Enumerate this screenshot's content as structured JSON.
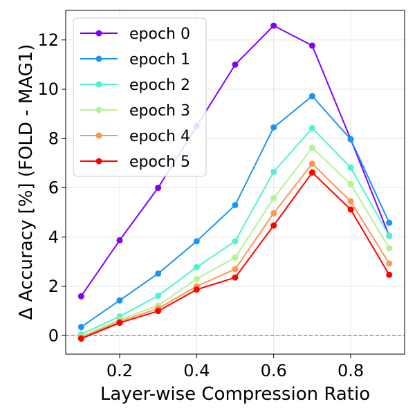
{
  "chart_data": {
    "type": "line",
    "title": "",
    "xlabel": "Layer-wise Compression Ratio",
    "ylabel": "Δ Accuracy [%] (FOLD - MAG1)",
    "x": [
      0.1,
      0.2,
      0.3,
      0.4,
      0.5,
      0.6,
      0.7,
      0.8,
      0.9
    ],
    "xlim": [
      0.06,
      0.94
    ],
    "ylim": [
      -0.75,
      13.2
    ],
    "xticks": [
      0.2,
      0.4,
      0.6,
      0.8
    ],
    "xtick_labels": [
      "0.2",
      "0.4",
      "0.6",
      "0.8"
    ],
    "yticks": [
      0,
      2,
      4,
      6,
      8,
      10,
      12
    ],
    "ytick_labels": [
      "0",
      "2",
      "4",
      "6",
      "8",
      "10",
      "12"
    ],
    "grid": true,
    "reference_line": {
      "y": 0,
      "style": "dashed",
      "color": "#808080"
    },
    "legend_position": "top-left",
    "series": [
      {
        "name": "epoch 0",
        "color": "#8000ff",
        "values": [
          1.6,
          3.87,
          6.0,
          8.5,
          11.0,
          12.58,
          11.77,
          7.97,
          4.05
        ]
      },
      {
        "name": "epoch 1",
        "color": "#1996f3",
        "values": [
          0.35,
          1.43,
          2.52,
          3.83,
          5.3,
          8.45,
          9.72,
          7.97,
          4.58
        ]
      },
      {
        "name": "epoch 2",
        "color": "#4df3ce",
        "values": [
          0.05,
          0.78,
          1.62,
          2.78,
          3.83,
          6.65,
          8.42,
          6.82,
          4.05
        ]
      },
      {
        "name": "epoch 3",
        "color": "#b2f396",
        "values": [
          -0.05,
          0.65,
          1.22,
          2.3,
          3.17,
          5.58,
          7.62,
          6.15,
          3.55
        ]
      },
      {
        "name": "epoch 4",
        "color": "#ff964f",
        "values": [
          -0.08,
          0.58,
          1.1,
          2.0,
          2.7,
          4.97,
          6.98,
          5.45,
          2.93
        ]
      },
      {
        "name": "epoch 5",
        "color": "#ff0000",
        "values": [
          -0.12,
          0.52,
          1.0,
          1.87,
          2.36,
          4.47,
          6.62,
          5.12,
          2.47
        ]
      }
    ]
  }
}
